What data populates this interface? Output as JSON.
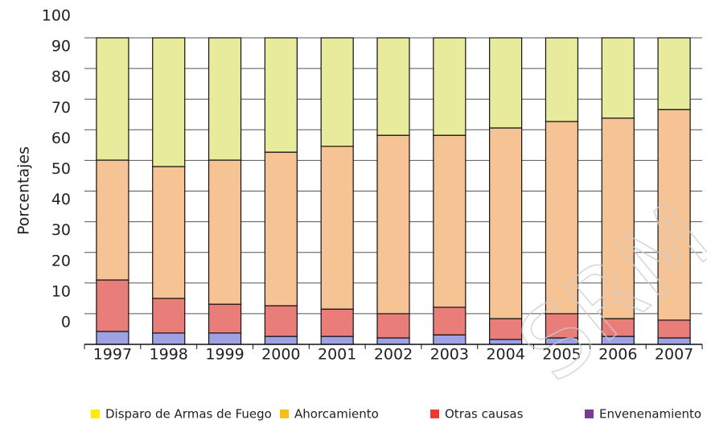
{
  "chart_data": {
    "type": "stacked_bar",
    "ylabel": "Porcentajes",
    "categories": [
      "1997",
      "1998",
      "1999",
      "2000",
      "2001",
      "2002",
      "2003",
      "2004",
      "2005",
      "2006",
      "2007"
    ],
    "series": [
      {
        "name": "Disparo de Armas de Fuego",
        "color": "#e9eb9c",
        "legend_color": "#ffec00",
        "values": [
          39.9,
          42,
          39.9,
          37.3,
          35.4,
          31.8,
          31.8,
          29.4,
          27.3,
          26.2,
          23.4
        ]
      },
      {
        "name": "Ahorcamiento",
        "color": "#f6c394",
        "legend_color": "#fbbf14",
        "values": [
          39.1,
          43,
          47,
          50.1,
          53.1,
          58.2,
          56.1,
          62.2,
          62.7,
          65.4,
          68.7
        ]
      },
      {
        "name": "Otras causas",
        "color": "#e97d7a",
        "legend_color": "#ee3a2e",
        "values": [
          16.8,
          11.3,
          9.4,
          10,
          8.9,
          7.9,
          9,
          6.8,
          7.9,
          5.8,
          5.8
        ]
      },
      {
        "name": "Envenenamiento",
        "color": "#9ea2e2",
        "legend_color": "#7b3a96",
        "values": [
          4.2,
          3.7,
          3.7,
          2.6,
          2.6,
          2.1,
          3.1,
          1.6,
          2.1,
          2.6,
          2.1
        ]
      }
    ],
    "ylim": [
      0,
      100
    ],
    "yticks": [
      0,
      10,
      20,
      30,
      40,
      50,
      60,
      70,
      80,
      90,
      100
    ],
    "grid": true,
    "legend": "bottom",
    "watermark": "SRM"
  }
}
